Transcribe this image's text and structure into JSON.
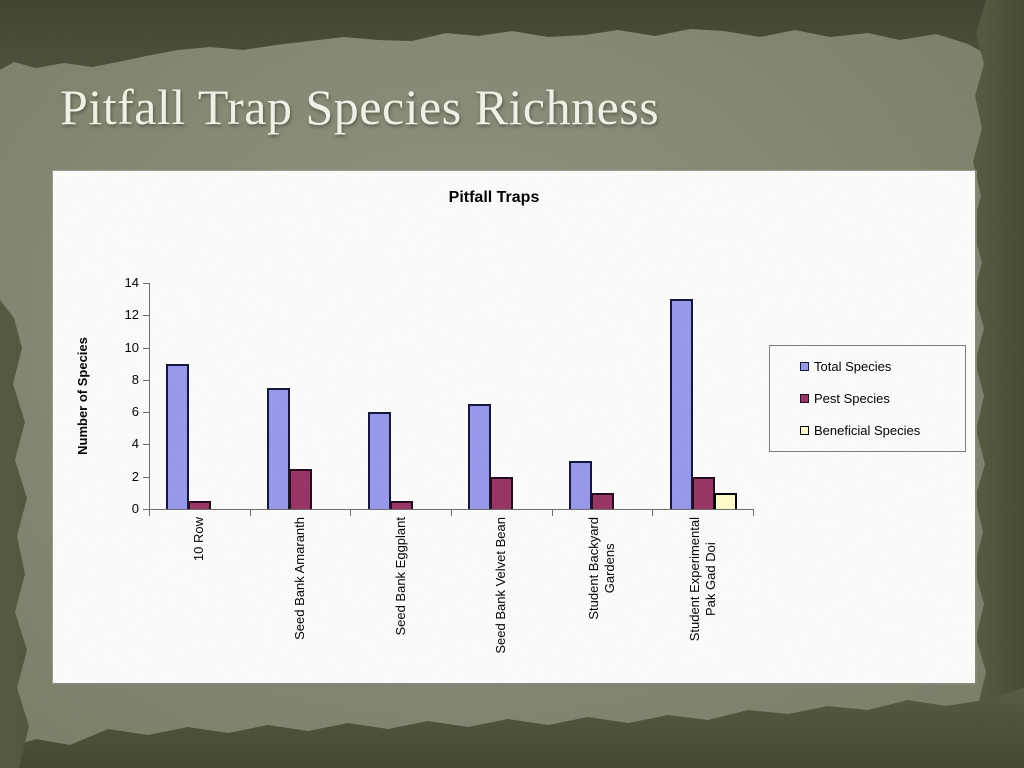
{
  "slide": {
    "title": "Pitfall Trap Species Richness"
  },
  "palette": {
    "background_light": "#868a76",
    "background_dark": "#4c513a",
    "title_color": "#f5f4ea",
    "panel_background": "#ffffff",
    "axis_color": "#6e6e6e"
  },
  "chart_data": {
    "type": "bar",
    "title": "Pitfall Traps",
    "xlabel": "",
    "ylabel": "Number of Species",
    "ylim": [
      0,
      14
    ],
    "ytick_step": 2,
    "grid": false,
    "legend_position": "right",
    "categories": [
      "10 Row",
      "Seed Bank Amaranth",
      "Seed Bank Eggplant",
      "Seed Bank Velvet Bean",
      "Student Backyard Gardens",
      "Student Experimental Pak Gad Doi"
    ],
    "wrapped_labels": [
      [
        "10 Row"
      ],
      [
        "Seed Bank Amaranth"
      ],
      [
        "Seed Bank Eggplant"
      ],
      [
        "Seed Bank Velvet Bean"
      ],
      [
        "Student Backyard",
        "Gardens"
      ],
      [
        "Student Experimental",
        "Pak Gad Doi"
      ]
    ],
    "series": [
      {
        "name": "Total Species",
        "color": "#9999ee",
        "border": "#14143c",
        "values": [
          9,
          7.5,
          6,
          6.5,
          3,
          13
        ]
      },
      {
        "name": "Pest Species",
        "color": "#993366",
        "border": "#200a18",
        "values": [
          0.5,
          2.5,
          0.5,
          2,
          1,
          2
        ]
      },
      {
        "name": "Beneficial Species",
        "color": "#ffffcc",
        "border": "#000000",
        "values": [
          0,
          0,
          0,
          0,
          0,
          1
        ]
      }
    ]
  }
}
